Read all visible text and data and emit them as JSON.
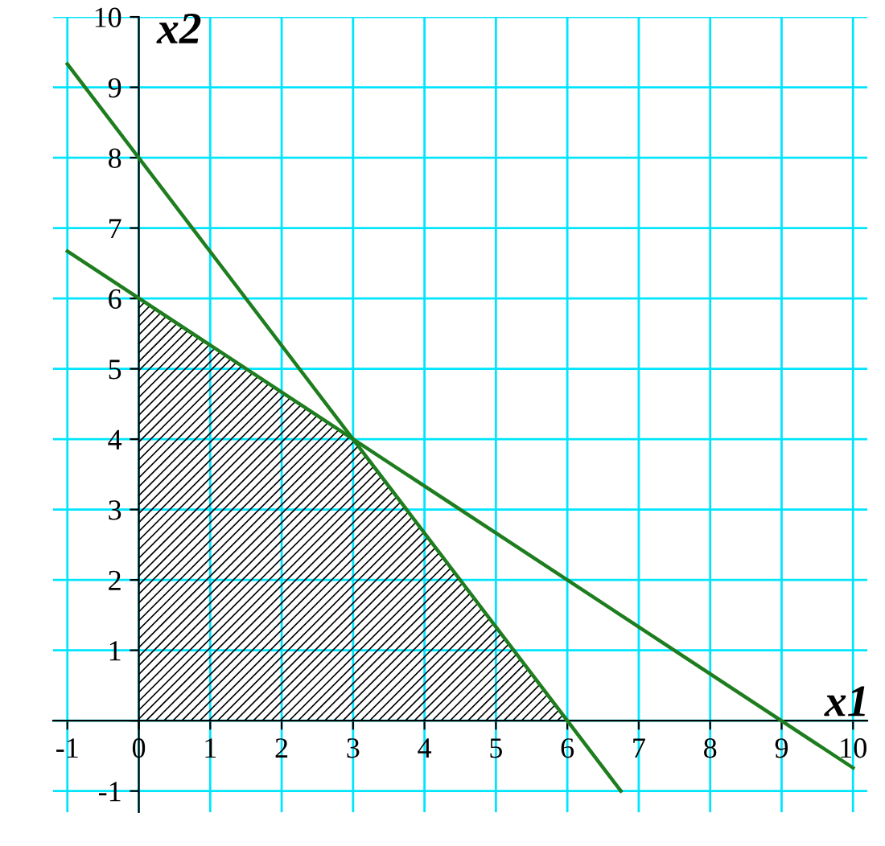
{
  "chart_data": {
    "type": "line",
    "xlabel": "x1",
    "ylabel": "x2",
    "series": [
      {
        "color": "#1e7d1e",
        "x": [
          -1,
          6.75
        ],
        "values": [
          9.33,
          -1
        ]
      },
      {
        "color": "#1e7d1e",
        "x": [
          -1,
          10
        ],
        "values": [
          6.67,
          -0.67
        ]
      },
      {
        "type": "area",
        "color": "#000000",
        "x": [
          0,
          3,
          6
        ],
        "values": [
          6,
          4,
          0
        ]
      }
    ],
    "xlim": [
      -1.2,
      10.2
    ],
    "ylim": [
      -1.3,
      10
    ],
    "xticks": [
      -1,
      {
        "value": 0,
        "label": "0"
      },
      1,
      2,
      3,
      4,
      5,
      6,
      7,
      8,
      9,
      10
    ],
    "yticks": [
      -1,
      {
        "value": 0,
        "label": null
      },
      1,
      2,
      3,
      4,
      5,
      6,
      7,
      8,
      9,
      10
    ],
    "grid": true
  }
}
